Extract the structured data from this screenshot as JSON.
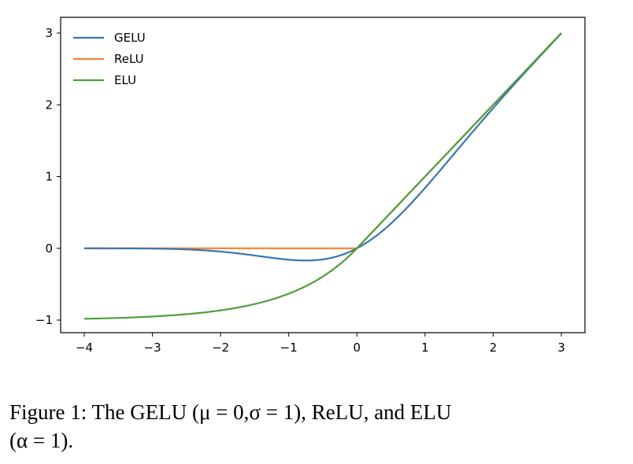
{
  "chart_data": {
    "type": "line",
    "title": "",
    "xlabel": "",
    "ylabel": "",
    "xlim": [
      -4,
      3
    ],
    "ylim": [
      -1,
      3
    ],
    "x_ticks": [
      -4,
      -3,
      -2,
      -1,
      0,
      1,
      2,
      3
    ],
    "x_tick_labels": [
      "−4",
      "−3",
      "−2",
      "−1",
      "0",
      "1",
      "2",
      "3"
    ],
    "y_ticks": [
      -1,
      0,
      1,
      2,
      3
    ],
    "y_tick_labels": [
      "−1",
      "0",
      "1",
      "2",
      "3"
    ],
    "grid": false,
    "legend_position": "top-left",
    "series": [
      {
        "name": "GELU",
        "color": "#3a75b0",
        "function": "gelu",
        "x": [
          -4,
          -3.5,
          -3,
          -2.5,
          -2,
          -1.5,
          -1,
          -0.75,
          -0.5,
          -0.25,
          0,
          0.25,
          0.5,
          0.75,
          1,
          1.5,
          2,
          2.5,
          3
        ],
        "y": [
          -0.0001,
          -0.0008,
          -0.004,
          -0.0155,
          -0.0455,
          -0.1002,
          -0.1587,
          -0.17,
          -0.1543,
          -0.0997,
          0,
          0.1503,
          0.3457,
          0.58,
          0.8413,
          1.3998,
          1.9545,
          2.4845,
          2.996
        ]
      },
      {
        "name": "ReLU",
        "color": "#ef8536",
        "function": "relu",
        "x": [
          -4,
          -3,
          -2,
          -1,
          0,
          1,
          2,
          3
        ],
        "y": [
          0,
          0,
          0,
          0,
          0,
          1,
          2,
          3
        ]
      },
      {
        "name": "ELU",
        "color": "#4f9e3d",
        "function": "elu",
        "x": [
          -4,
          -3.5,
          -3,
          -2.5,
          -2,
          -1.5,
          -1,
          -0.5,
          0,
          1,
          2,
          3
        ],
        "y": [
          -0.9817,
          -0.9698,
          -0.9502,
          -0.9179,
          -0.8647,
          -0.7769,
          -0.6321,
          -0.3935,
          0,
          1,
          2,
          3
        ]
      }
    ]
  },
  "caption": {
    "prefix": "Figure 1:  The GELU (",
    "mu": "μ",
    "eq1": " = 0,",
    "sigma": "σ",
    "eq2": " = 1), ReLU, and ELU",
    "line2_open": "(",
    "alpha": "α",
    "eq3": " = 1)."
  }
}
